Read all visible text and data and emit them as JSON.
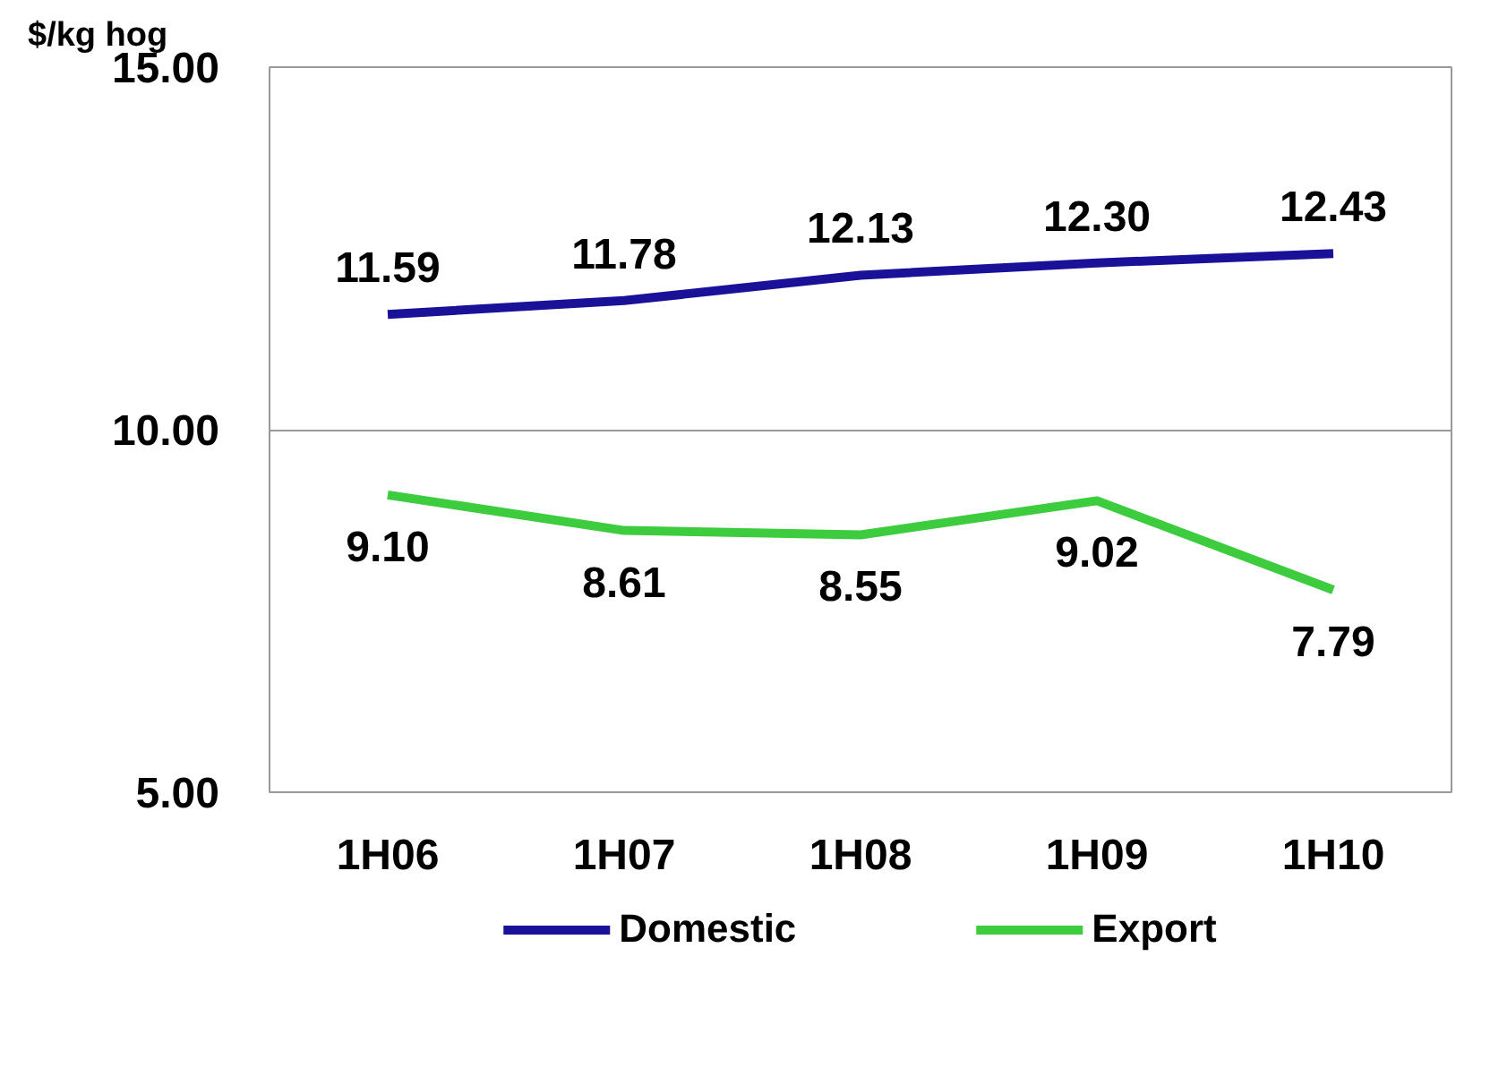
{
  "chart_data": {
    "type": "line",
    "ylabel": "$/kg hog",
    "categories": [
      "1H06",
      "1H07",
      "1H08",
      "1H09",
      "1H10"
    ],
    "series": [
      {
        "name": "Domestic",
        "color": "#1a1199",
        "values": [
          11.59,
          11.78,
          12.13,
          12.3,
          12.43
        ],
        "value_labels": [
          "11.59",
          "11.78",
          "12.13",
          "12.30",
          "12.43"
        ]
      },
      {
        "name": "Export",
        "color": "#3dcc3d",
        "values": [
          9.1,
          8.61,
          8.55,
          9.02,
          7.79
        ],
        "value_labels": [
          "9.10",
          "8.61",
          "8.55",
          "9.02",
          "7.79"
        ]
      }
    ],
    "ylim": [
      5,
      15
    ],
    "yticks": [
      {
        "value": 5,
        "label": "5.00"
      },
      {
        "value": 10,
        "label": "10.00"
      },
      {
        "value": 15,
        "label": "15.00"
      }
    ],
    "grid": "y",
    "legend": "bottom",
    "marker": "none",
    "line_style": "solid"
  }
}
